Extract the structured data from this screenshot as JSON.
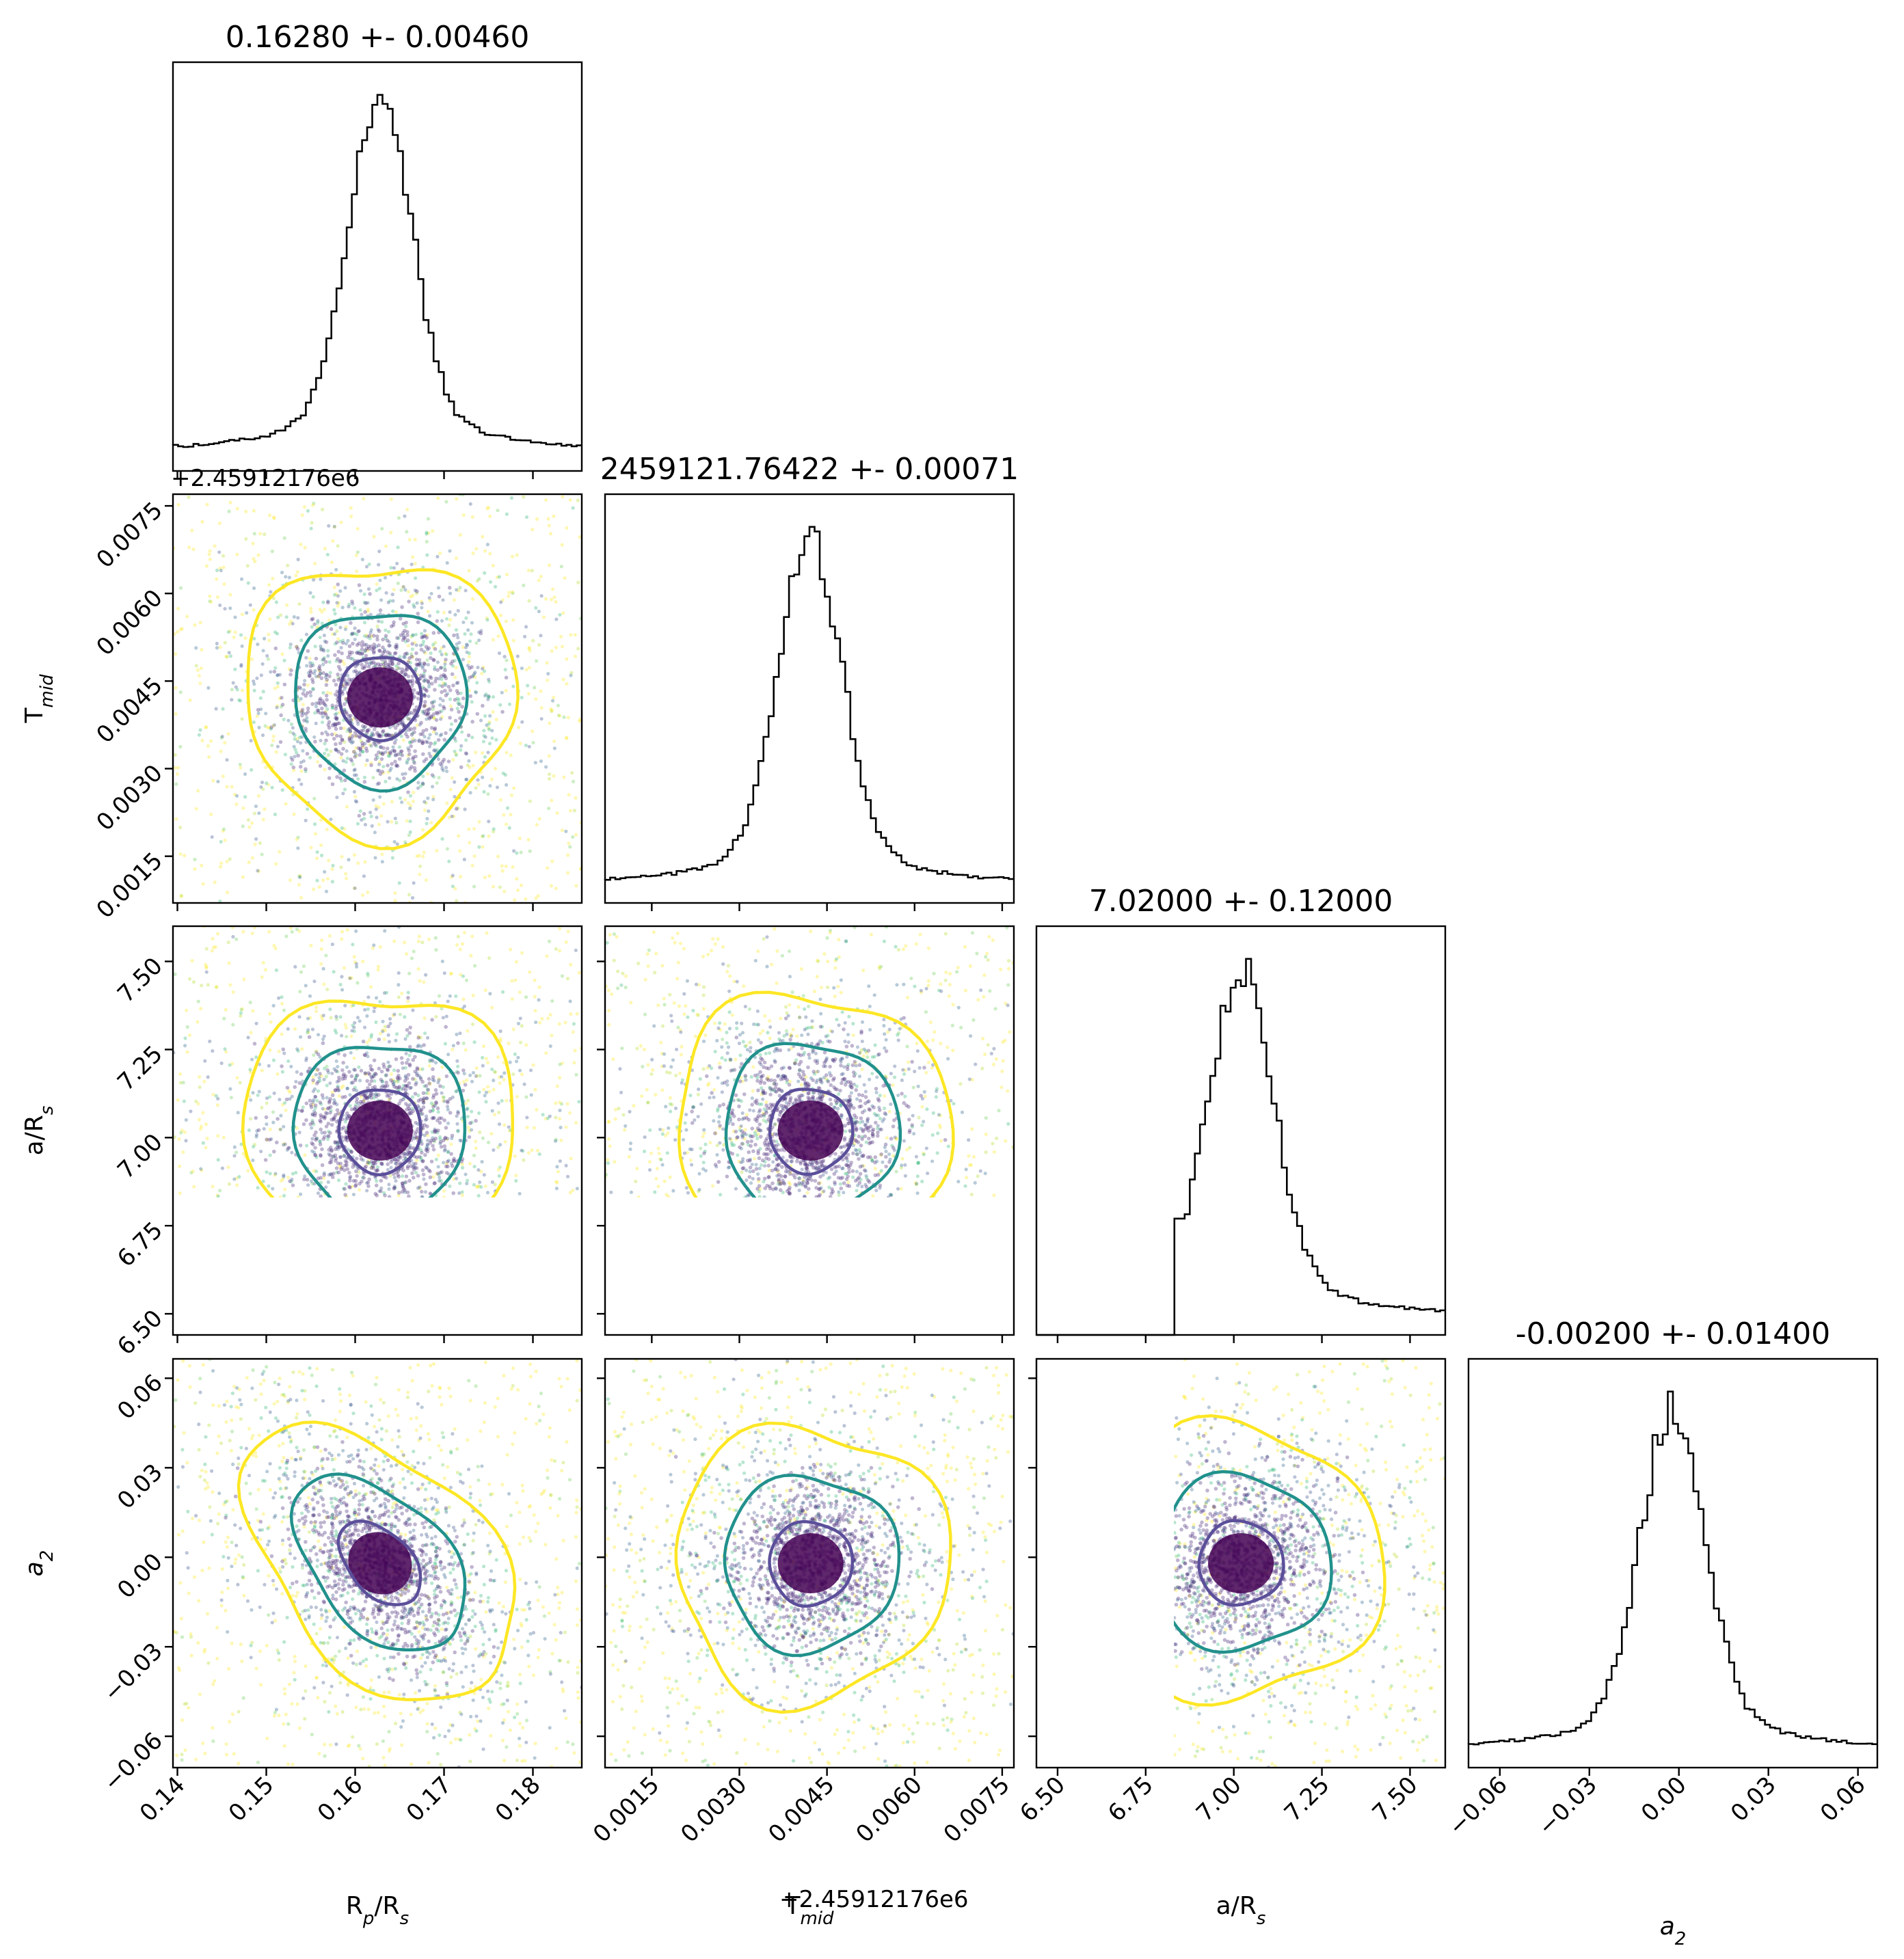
{
  "chart_data": {
    "type": "corner",
    "colors": {
      "outer_contour": "#fde725",
      "inner_contour": "#21918c",
      "core": "#440154",
      "histogram": "#000000",
      "frame": "#000000"
    },
    "parameters": [
      {
        "key": "rp",
        "label_main": "R",
        "label_sub": "p",
        "label_mid": "/R",
        "label_sub2": "s",
        "title": "0.16280 +- 0.00460",
        "median": 0.1628,
        "sigma": 0.0046,
        "range": [
          0.1395,
          0.1855
        ],
        "ticks": [
          "0.14",
          "0.15",
          "0.16",
          "0.17",
          "0.18"
        ],
        "tick_values": [
          0.14,
          0.15,
          0.16,
          0.17,
          0.18
        ]
      },
      {
        "key": "tmid",
        "label_main": "T",
        "label_sub": "mid",
        "label_mid": "",
        "label_sub2": "",
        "title": "2459121.76422 +- 0.00071",
        "offset": "+2.45912176e6",
        "median": 0.00422,
        "sigma": 0.00071,
        "range": [
          0.0007,
          0.0077
        ],
        "ticks": [
          "0.0015",
          "0.0030",
          "0.0045",
          "0.0060",
          "0.0075"
        ],
        "tick_values": [
          0.0015,
          0.003,
          0.0045,
          0.006,
          0.0075
        ]
      },
      {
        "key": "ars",
        "label_main": "a/R",
        "label_sub": "s",
        "label_mid": "",
        "label_sub2": "",
        "title": "7.02000 +- 0.12000",
        "median": 7.02,
        "sigma": 0.12,
        "range": [
          6.44,
          7.6
        ],
        "ticks": [
          "6.50",
          "6.75",
          "7.00",
          "7.25",
          "7.50"
        ],
        "tick_values": [
          6.5,
          6.75,
          7.0,
          7.25,
          7.5
        ]
      },
      {
        "key": "a2",
        "label_main": "a",
        "label_sub": "2",
        "label_mid": "",
        "label_sub2": "",
        "italic": true,
        "title": "-0.00200 +- 0.01400",
        "median": -0.002,
        "sigma": 0.014,
        "range": [
          -0.0705,
          0.0665
        ],
        "ticks": [
          "−0.06",
          "−0.03",
          "0.00",
          "0.03",
          "0.06"
        ],
        "tick_values": [
          -0.06,
          -0.03,
          0.0,
          0.03,
          0.06
        ]
      }
    ]
  }
}
